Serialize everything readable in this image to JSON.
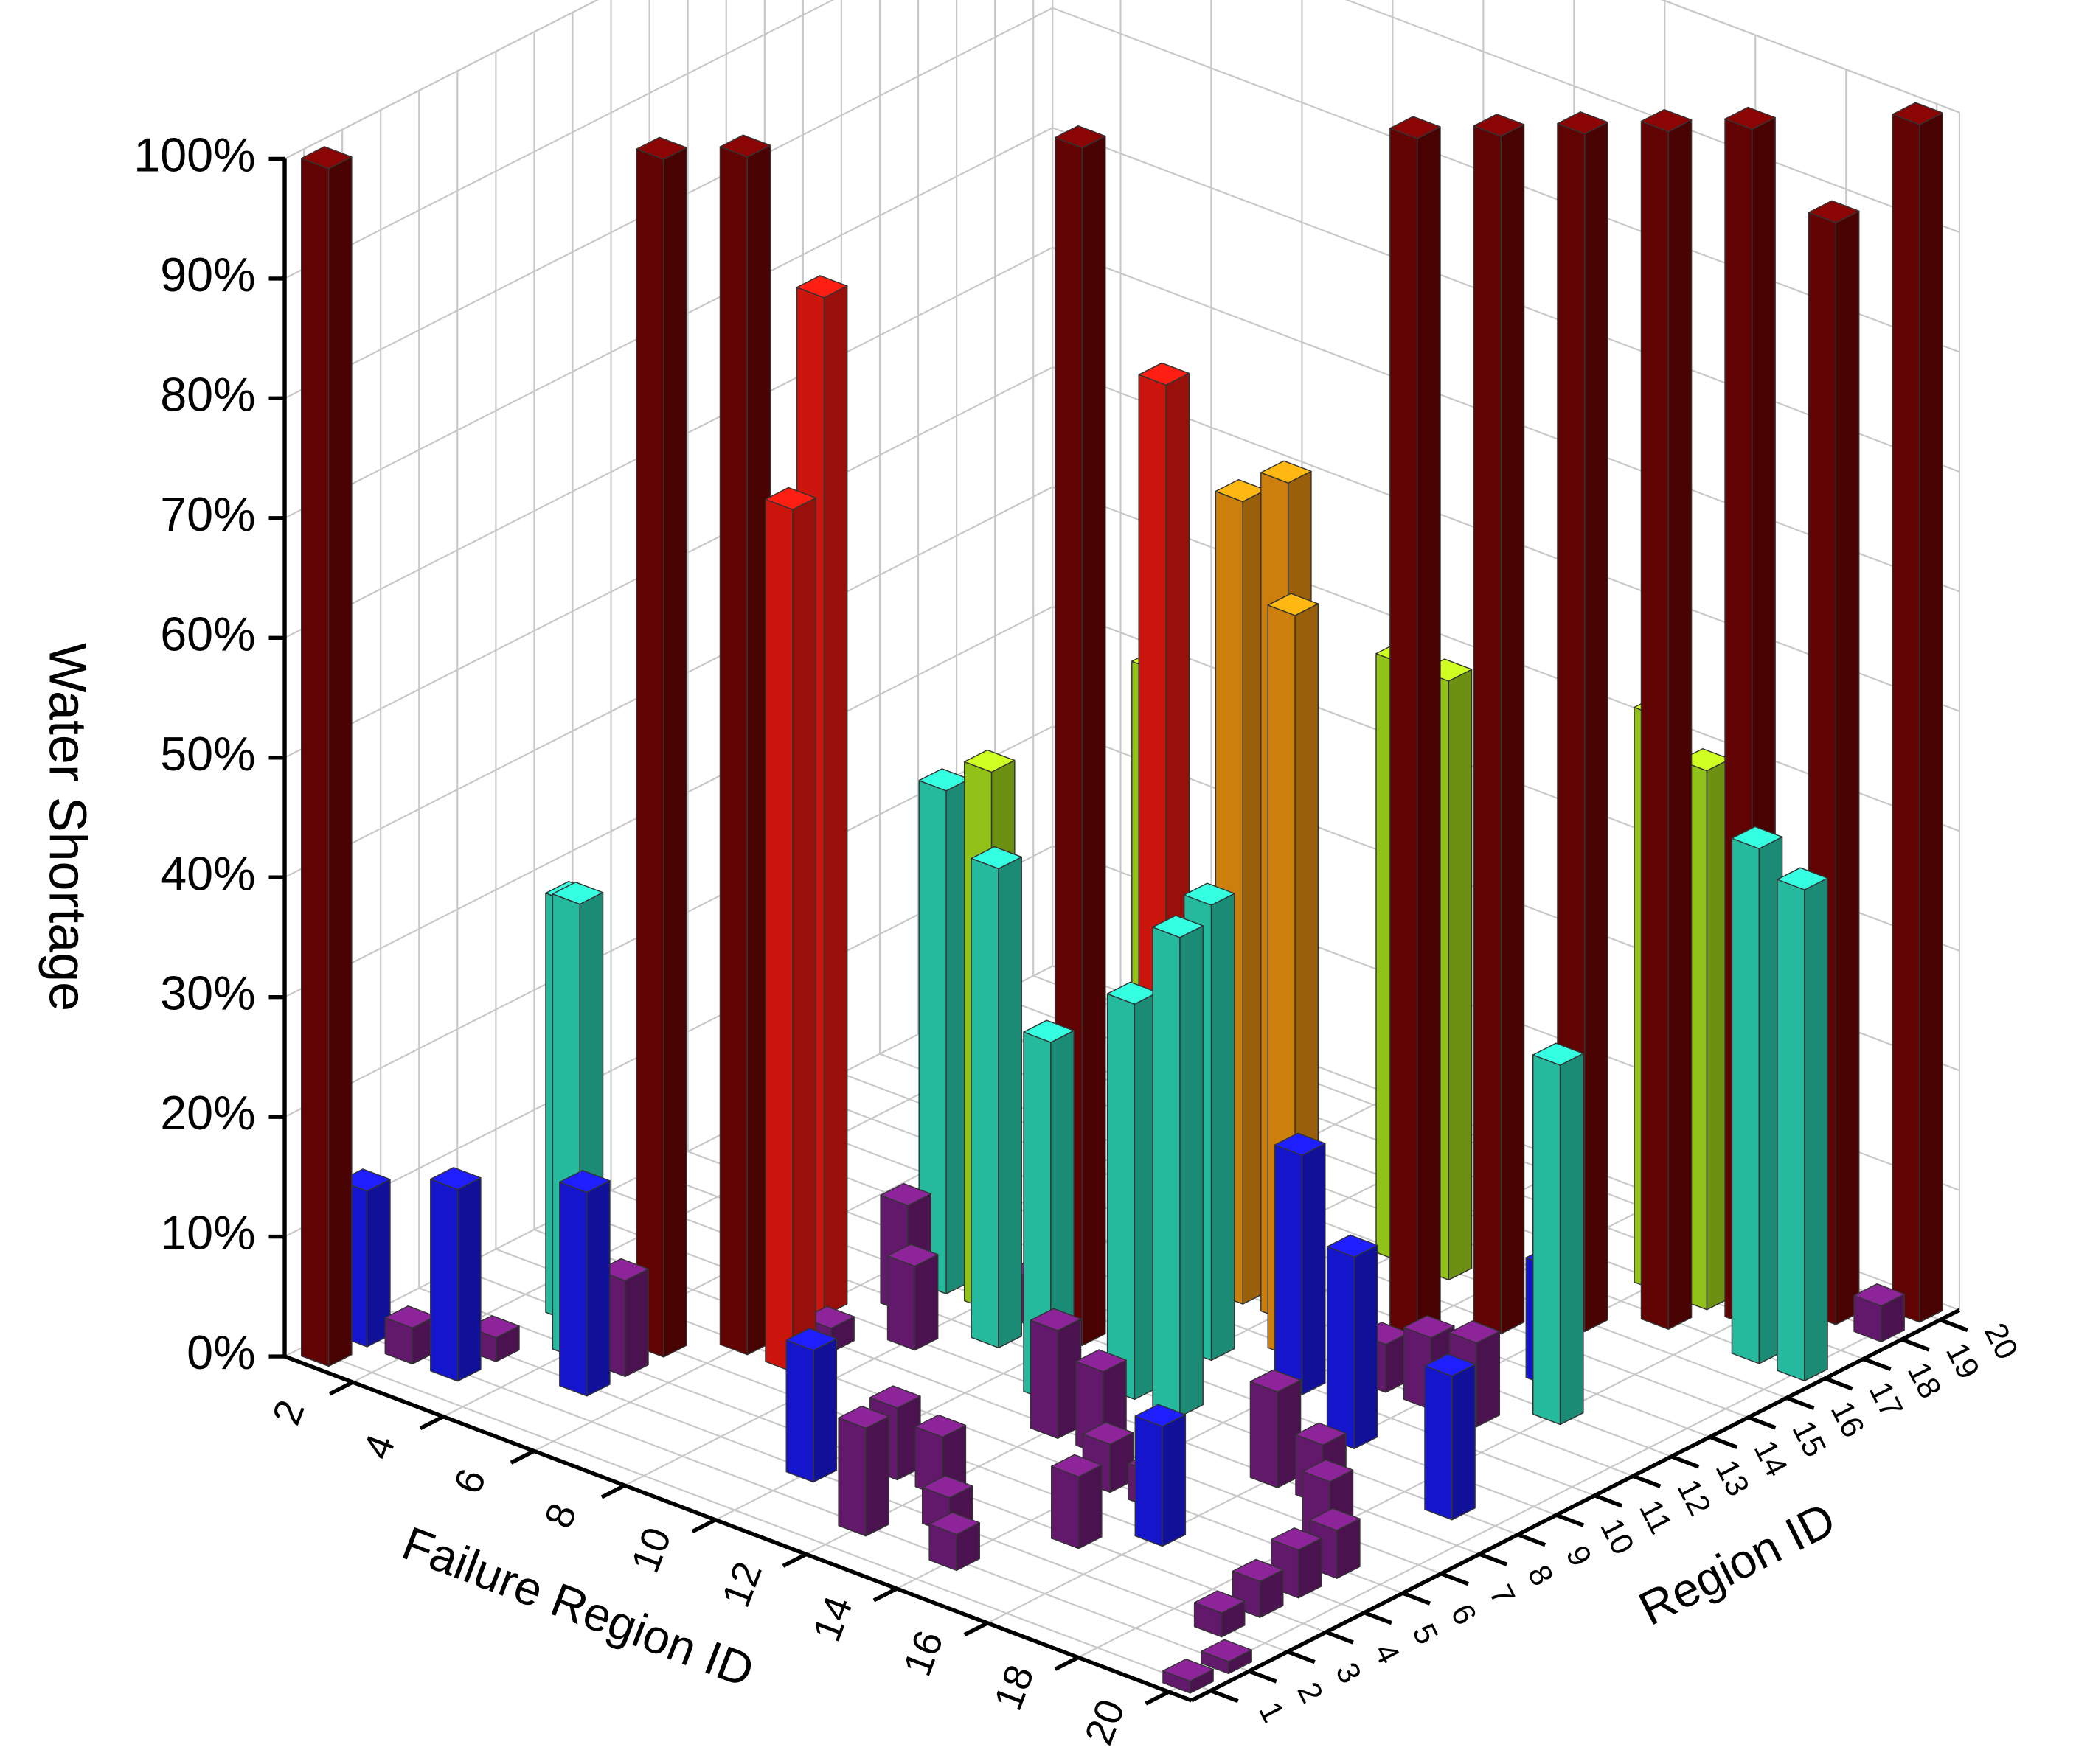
{
  "chart_data": {
    "type": "bar3d",
    "zlabel": "Water Shortage",
    "xlabel": "Failure Region ID",
    "ylabel": "Region ID",
    "x": [
      1,
      1,
      2,
      3,
      3,
      4,
      3,
      4,
      5,
      5,
      5,
      6,
      6,
      7,
      6,
      7,
      7,
      8,
      9,
      8,
      7,
      9,
      9,
      10,
      11,
      11,
      12,
      13,
      12,
      10,
      12,
      13,
      11,
      12,
      13,
      14,
      15,
      16,
      15,
      16,
      17,
      14,
      16,
      15,
      16,
      17,
      14,
      15,
      16,
      17,
      18,
      19,
      20,
      13,
      12,
      17,
      16,
      19,
      20,
      18,
      20,
      17,
      19,
      18,
      19,
      20,
      20,
      19,
      19,
      19,
      11,
      12,
      13,
      14,
      10,
      12
    ],
    "y": [
      1,
      2,
      2,
      2,
      3,
      4,
      5,
      5,
      5,
      3,
      4,
      6,
      8,
      6,
      7,
      7,
      9,
      8,
      9,
      10,
      10,
      10,
      11,
      10,
      11,
      13,
      13,
      12,
      11,
      12,
      9,
      9,
      8,
      7,
      7,
      6,
      6,
      5,
      4,
      8,
      8,
      11,
      10,
      12,
      12,
      12,
      14,
      15,
      16,
      17,
      18,
      19,
      20,
      16,
      16,
      18,
      18,
      17,
      17,
      13,
      19,
      14,
      9,
      7,
      6,
      1,
      2,
      3,
      4,
      5,
      4,
      4,
      3,
      2,
      3,
      2
    ],
    "values": [
      100,
      13,
      3,
      16,
      2,
      38,
      35,
      3,
      100,
      17,
      8,
      100,
      85,
      72,
      6,
      2,
      9,
      7,
      40,
      45,
      42,
      4,
      3,
      100,
      80,
      67,
      70,
      62,
      38,
      53,
      33,
      40,
      30,
      9,
      7,
      4,
      3,
      10,
      6,
      8,
      5,
      20,
      16,
      4,
      6,
      7,
      100,
      100,
      100,
      100,
      100,
      92,
      100,
      50,
      50,
      45,
      48,
      43,
      41,
      30,
      3,
      10,
      12,
      5,
      4,
      1,
      1,
      2,
      3,
      4,
      6,
      5,
      3,
      3,
      11,
      9
    ],
    "color_levels": [
      {
        "below": 10,
        "color": "#7b1f86"
      },
      {
        "below": 25,
        "color": "#1a1aff"
      },
      {
        "below": 45,
        "color": "#2ee8c4"
      },
      {
        "below": 56,
        "color": "#b4f21e"
      },
      {
        "below": 72,
        "color": "#ff9f10"
      },
      {
        "below": 90,
        "color": "#ff1a10"
      },
      {
        "below": 101,
        "color": "#7a0404"
      }
    ],
    "xlim": [
      0.5,
      20.5
    ],
    "ylim": [
      0.5,
      20.5
    ],
    "zlim": [
      0,
      100
    ],
    "xticks": [
      2,
      4,
      6,
      8,
      10,
      12,
      14,
      16,
      18,
      20
    ],
    "yticks": [
      1,
      2,
      3,
      4,
      5,
      6,
      7,
      8,
      9,
      10,
      11,
      12,
      13,
      14,
      15,
      16,
      17,
      18,
      19,
      20
    ],
    "zticks": [
      {
        "value": 0,
        "label": "0%"
      },
      {
        "value": 10,
        "label": "10%"
      },
      {
        "value": 20,
        "label": "20%"
      },
      {
        "value": 30,
        "label": "30%"
      },
      {
        "value": 40,
        "label": "40%"
      },
      {
        "value": 50,
        "label": "50%"
      },
      {
        "value": 60,
        "label": "60%"
      },
      {
        "value": 70,
        "label": "70%"
      },
      {
        "value": 80,
        "label": "80%"
      },
      {
        "value": 90,
        "label": "90%"
      },
      {
        "value": 100,
        "label": "100%"
      }
    ],
    "grid": true
  }
}
